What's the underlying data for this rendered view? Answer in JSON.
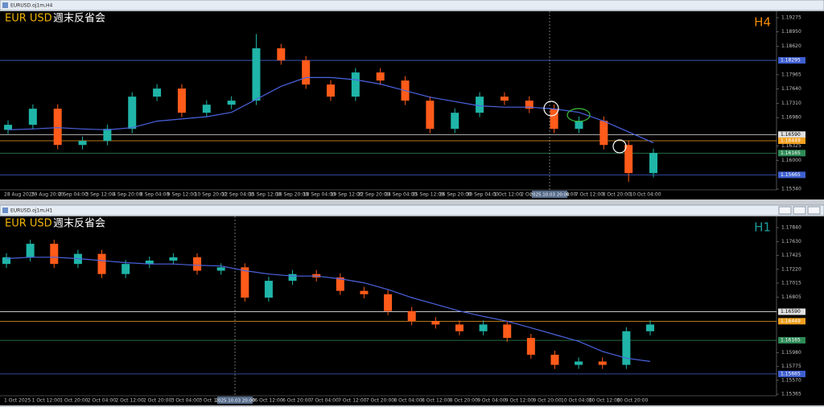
{
  "windows": [
    {
      "title": "EURUSD.oj1m,H4",
      "symbol": "EUR USD",
      "note": "週末反省会",
      "timeframe": "H4",
      "ylim": [
        1.1534,
        1.19275
      ],
      "yticks": [
        {
          "value": 1.19275,
          "label": "1.19275"
        },
        {
          "value": 1.1895,
          "label": "1.18950"
        },
        {
          "value": 1.1862,
          "label": "1.18620"
        },
        {
          "value": 1.17965,
          "label": "1.17965"
        },
        {
          "value": 1.1764,
          "label": "1.17640"
        },
        {
          "value": 1.1731,
          "label": "1.17310"
        },
        {
          "value": 1.1698,
          "label": "1.16980"
        },
        {
          "value": 1.16325,
          "label": "1.16325"
        },
        {
          "value": 1.16,
          "label": "1.16000"
        },
        {
          "value": 1.1534,
          "label": "1.15340"
        }
      ],
      "levels": [
        {
          "value": 1.18295,
          "label": "1.18295",
          "color": "#3f5fd0"
        },
        {
          "value": 1.1659,
          "label": "1.16590",
          "color": "#e0e0e0"
        },
        {
          "value": 1.16449,
          "label": "1.16449",
          "color": "#f0a020"
        },
        {
          "value": 1.16165,
          "label": "1.16165",
          "color": "#2e8b57"
        },
        {
          "value": 1.15665,
          "label": "1.15665",
          "color": "#3f5fd0"
        }
      ],
      "time_labels": [
        "28 Aug 2025",
        "29 Aug 20:00",
        "2 Sep 04:00",
        "3 Sep 12:00",
        "4 Sep 20:00",
        "8 Sep 04:00",
        "9 Sep 12:00",
        "10 Sep 20:00",
        "12 Sep 04:00",
        "15 Sep 12:00",
        "16 Sep 20:00",
        "18 Sep 04:00",
        "19 Sep 12:00",
        "22 Sep 20:00",
        "24 Sep 04:00",
        "25 Sep 12:00",
        "26 Sep 20:00",
        "30 Sep 04:00",
        "1 Oct 12:00",
        "2 Oct 20:00",
        "6 Oct 04:00",
        "7 Oct 12:00",
        "8 Oct 20:00",
        "10 Oct 04:00"
      ],
      "cursor_time": "2025.10.03 20:00",
      "candles": [
        [
          1.167,
          1.16915,
          1.166,
          1.16815
        ],
        [
          1.16815,
          1.17285,
          1.16715,
          1.17185
        ],
        [
          1.17185,
          1.17285,
          1.16252,
          1.16352
        ],
        [
          1.16352,
          1.16545,
          1.16252,
          1.16445
        ],
        [
          1.16445,
          1.16822,
          1.16345,
          1.16722
        ],
        [
          1.16722,
          1.17562,
          1.16622,
          1.17462
        ],
        [
          1.17462,
          1.17747,
          1.17362,
          1.17647
        ],
        [
          1.17647,
          1.17747,
          1.16992,
          1.17092
        ],
        [
          1.17092,
          1.17377,
          1.16992,
          1.17277
        ],
        [
          1.17277,
          1.1747,
          1.17177,
          1.1737
        ],
        [
          1.1737,
          1.189,
          1.1727,
          1.18572
        ],
        [
          1.18572,
          1.18672,
          1.18195,
          1.18295
        ],
        [
          1.18295,
          1.18395,
          1.1764,
          1.1774
        ],
        [
          1.1774,
          1.1784,
          1.17362,
          1.17462
        ],
        [
          1.17462,
          1.18117,
          1.17362,
          1.18017
        ],
        [
          1.18017,
          1.18117,
          1.17732,
          1.17832
        ],
        [
          1.17832,
          1.17932,
          1.1727,
          1.1737
        ],
        [
          1.1737,
          1.1747,
          1.16622,
          1.16722
        ],
        [
          1.16722,
          1.17192,
          1.16622,
          1.17092
        ],
        [
          1.17092,
          1.17562,
          1.16992,
          1.17462
        ],
        [
          1.17462,
          1.17562,
          1.1727,
          1.1737
        ],
        [
          1.1737,
          1.1747,
          1.17085,
          1.17185
        ],
        [
          1.17185,
          1.17285,
          1.16622,
          1.16722
        ],
        [
          1.16722,
          1.17007,
          1.16622,
          1.16907
        ],
        [
          1.16907,
          1.17007,
          1.16252,
          1.16352
        ],
        [
          1.16352,
          1.16452,
          1.15505,
          1.15705
        ],
        [
          1.15705,
          1.16267,
          1.15605,
          1.16167
        ]
      ],
      "ma": [
        1.167,
        1.1672,
        1.1675,
        1.1672,
        1.167,
        1.1675,
        1.169,
        1.1695,
        1.17,
        1.171,
        1.174,
        1.177,
        1.179,
        1.179,
        1.1785,
        1.1775,
        1.176,
        1.1745,
        1.1735,
        1.1725,
        1.1722,
        1.1722,
        1.1718,
        1.171,
        1.169,
        1.1665,
        1.164
      ]
    },
    {
      "title": "EURUSD.oj1m,H1",
      "symbol": "EUR USD",
      "note": "週末反省会",
      "timeframe": "H1",
      "ylim": [
        1.15365,
        1.1784
      ],
      "yticks": [
        {
          "value": 1.1784,
          "label": "1.17840"
        },
        {
          "value": 1.1763,
          "label": "1.17630"
        },
        {
          "value": 1.17425,
          "label": "1.17425"
        },
        {
          "value": 1.1722,
          "label": "1.17220"
        },
        {
          "value": 1.17015,
          "label": "1.17015"
        },
        {
          "value": 1.16805,
          "label": "1.16805"
        },
        {
          "value": 1.1598,
          "label": "1.15980"
        },
        {
          "value": 1.15775,
          "label": "1.15775"
        },
        {
          "value": 1.1557,
          "label": "1.15570"
        },
        {
          "value": 1.15365,
          "label": "1.15365"
        }
      ],
      "levels": [
        {
          "value": 1.1659,
          "label": "1.16590",
          "color": "#e0e0e0"
        },
        {
          "value": 1.16449,
          "label": "1.16449",
          "color": "#f0a020"
        },
        {
          "value": 1.16165,
          "label": "1.16165",
          "color": "#2e8b57"
        },
        {
          "value": 1.15665,
          "label": "1.15665",
          "color": "#3f5fd0"
        }
      ],
      "time_labels": [
        "1 Oct 2025",
        "1 Oct 12:00",
        "1 Oct 20:00",
        "2 Oct 04:00",
        "2 Oct 12:00",
        "2 Oct 20:00",
        "3 Oct 04:00",
        "3 Oct 12:00",
        "6 Oct 04:00",
        "6 Oct 12:00",
        "6 Oct 20:00",
        "7 Oct 04:00",
        "7 Oct 12:00",
        "7 Oct 20:00",
        "8 Oct 04:00",
        "8 Oct 12:00",
        "8 Oct 20:00",
        "9 Oct 04:00",
        "9 Oct 12:00",
        "9 Oct 20:00",
        "10 Oct 04:00",
        "10 Oct 12:00",
        "10 Oct 20:00"
      ],
      "cursor_time": "2025.10.03 20:00",
      "candles": [
        [
          1.173,
          1.1746,
          1.1724,
          1.174
        ],
        [
          1.174,
          1.1766,
          1.1734,
          1.176
        ],
        [
          1.176,
          1.1766,
          1.1724,
          1.173
        ],
        [
          1.173,
          1.1751,
          1.1724,
          1.1745
        ],
        [
          1.1745,
          1.1751,
          1.1709,
          1.1715
        ],
        [
          1.1715,
          1.1736,
          1.1709,
          1.173
        ],
        [
          1.173,
          1.1741,
          1.1724,
          1.1735
        ],
        [
          1.1735,
          1.1746,
          1.1729,
          1.174
        ],
        [
          1.174,
          1.1746,
          1.1714,
          1.172
        ],
        [
          1.172,
          1.1731,
          1.1714,
          1.1725
        ],
        [
          1.1725,
          1.1731,
          1.1674,
          1.168
        ],
        [
          1.168,
          1.1711,
          1.1674,
          1.1705
        ],
        [
          1.1705,
          1.1721,
          1.1699,
          1.1715
        ],
        [
          1.1715,
          1.1721,
          1.1704,
          1.171
        ],
        [
          1.171,
          1.1716,
          1.1684,
          1.169
        ],
        [
          1.169,
          1.1696,
          1.1679,
          1.1685
        ],
        [
          1.1685,
          1.1691,
          1.1654,
          1.166
        ],
        [
          1.166,
          1.1666,
          1.1639,
          1.1645
        ],
        [
          1.1645,
          1.1651,
          1.1634,
          1.164
        ],
        [
          1.164,
          1.1646,
          1.1624,
          1.163
        ],
        [
          1.163,
          1.1646,
          1.1624,
          1.164
        ],
        [
          1.164,
          1.1646,
          1.1614,
          1.162
        ],
        [
          1.162,
          1.1626,
          1.1589,
          1.1595
        ],
        [
          1.1595,
          1.1601,
          1.1574,
          1.158
        ],
        [
          1.158,
          1.1591,
          1.1574,
          1.1585
        ],
        [
          1.1585,
          1.1591,
          1.1574,
          1.158
        ],
        [
          1.158,
          1.1636,
          1.1574,
          1.163
        ],
        [
          1.163,
          1.1646,
          1.1624,
          1.164
        ]
      ],
      "ma": [
        1.1738,
        1.174,
        1.174,
        1.1738,
        1.1735,
        1.1732,
        1.173,
        1.173,
        1.1728,
        1.1727,
        1.172,
        1.1715,
        1.1712,
        1.1712,
        1.1708,
        1.1702,
        1.1692,
        1.168,
        1.167,
        1.166,
        1.1652,
        1.1645,
        1.1635,
        1.1625,
        1.1615,
        1.16,
        1.159,
        1.1585
      ]
    }
  ]
}
